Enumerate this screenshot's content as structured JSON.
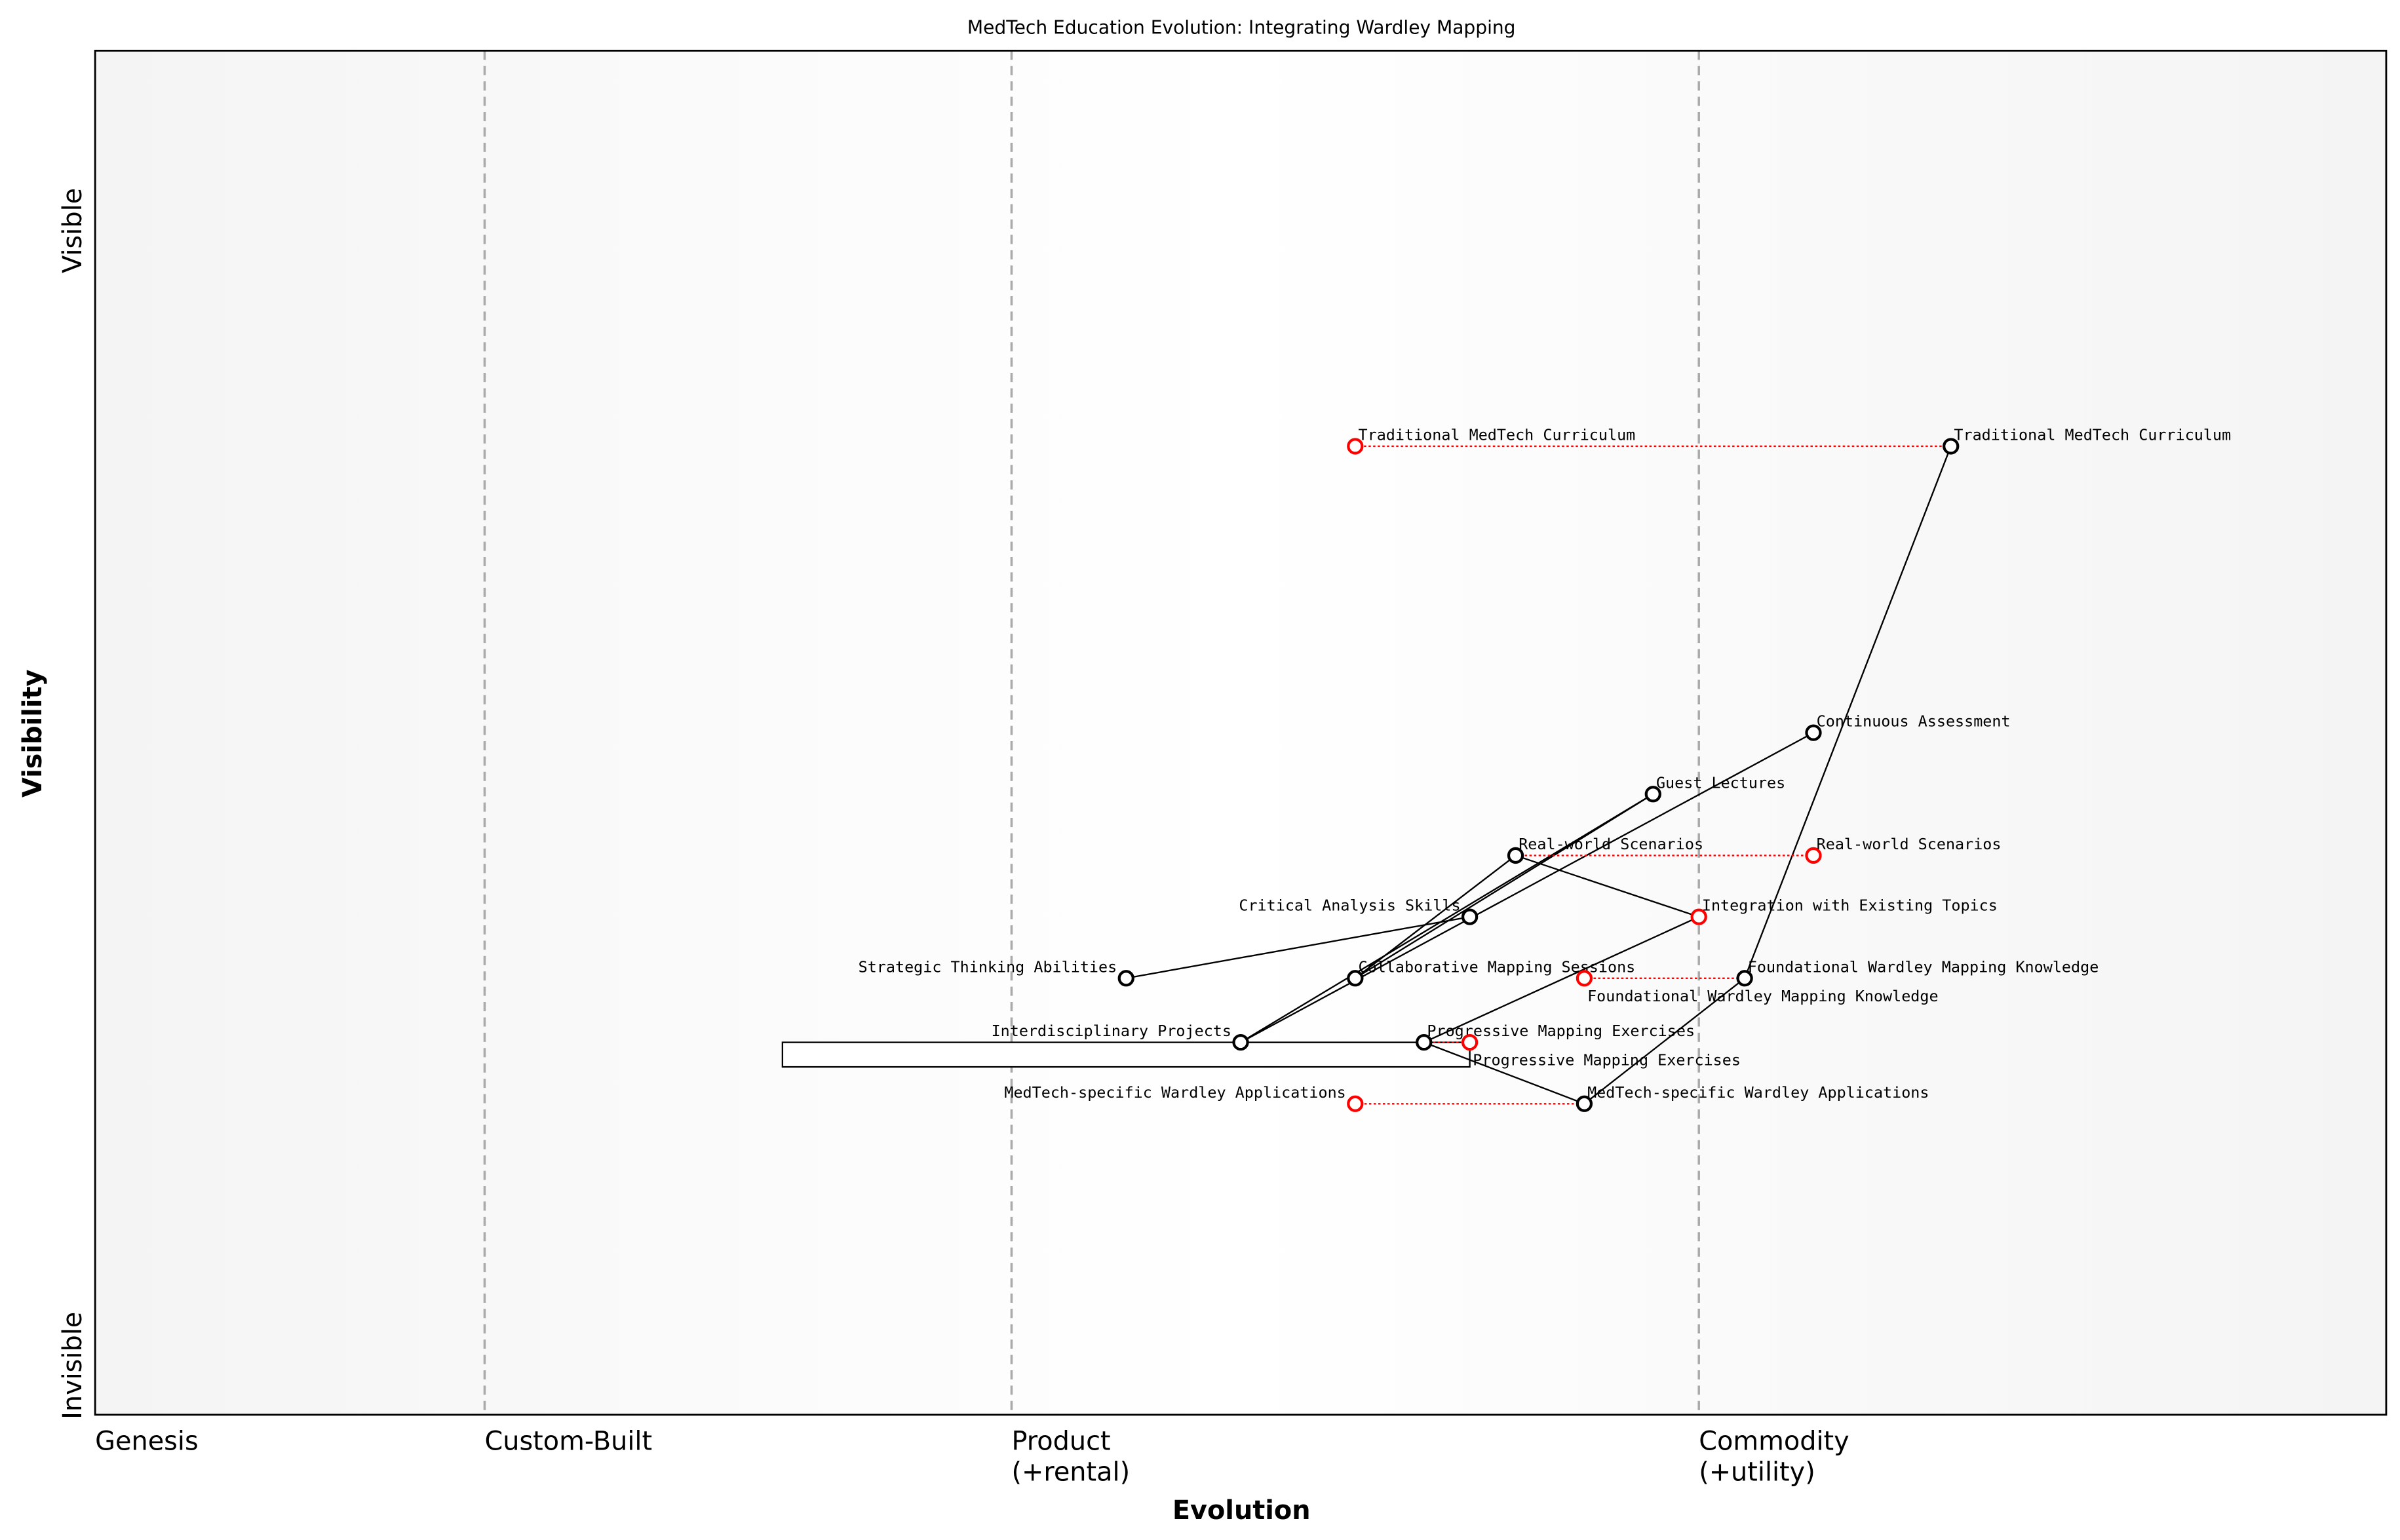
{
  "chart_data": {
    "type": "wardley-map",
    "title": "MedTech Education Evolution: Integrating Wardley Mapping",
    "xlabel": "Evolution",
    "ylabel": "Visibility",
    "y_ticks": [
      "Invisible",
      "Visible"
    ],
    "stages": [
      {
        "label": "Genesis",
        "x": 0.0
      },
      {
        "label": "Custom-Built",
        "x": 0.17
      },
      {
        "label": "Product",
        "sub": "(+rental)",
        "x": 0.4
      },
      {
        "label": "Commodity",
        "sub": "(+utility)",
        "x": 0.7
      }
    ],
    "xlim": [
      0,
      1
    ],
    "ylim": [
      0,
      1
    ],
    "components": [
      {
        "name": "Traditional MedTech Curriculum",
        "evolution": 0.81,
        "visibility": 0.71,
        "color": "#000000"
      },
      {
        "name": "Continuous Assessment",
        "evolution": 0.75,
        "visibility": 0.5,
        "color": "#000000"
      },
      {
        "name": "Guest Lectures",
        "evolution": 0.68,
        "visibility": 0.455,
        "color": "#000000"
      },
      {
        "name": "Real-world Scenarios",
        "evolution": 0.62,
        "visibility": 0.41,
        "color": "#000000"
      },
      {
        "name": "Critical Analysis Skills",
        "evolution": 0.6,
        "visibility": 0.365,
        "color": "#000000"
      },
      {
        "name": "Strategic Thinking Abilities",
        "evolution": 0.45,
        "visibility": 0.32,
        "color": "#000000"
      },
      {
        "name": "Collaborative Mapping Sessions",
        "evolution": 0.55,
        "visibility": 0.32,
        "color": "#000000"
      },
      {
        "name": "Foundational Wardley Mapping Knowledge",
        "evolution": 0.72,
        "visibility": 0.32,
        "color": "#000000"
      },
      {
        "name": "Interdisciplinary Projects",
        "evolution": 0.5,
        "visibility": 0.273,
        "color": "#000000"
      },
      {
        "name": "Progressive Mapping Exercises",
        "evolution": 0.58,
        "visibility": 0.273,
        "color": "#000000"
      },
      {
        "name": "MedTech-specific Wardley Applications",
        "evolution": 0.65,
        "visibility": 0.228,
        "color": "#000000"
      },
      {
        "name": "Traditional MedTech Curriculum",
        "evolution": 0.55,
        "visibility": 0.71,
        "color": "#ff0000"
      },
      {
        "name": "Real-world Scenarios",
        "evolution": 0.75,
        "visibility": 0.41,
        "color": "#ff0000"
      },
      {
        "name": "Integration with Existing Topics",
        "evolution": 0.7,
        "visibility": 0.365,
        "color": "#ff0000"
      },
      {
        "name": "Foundational Wardley Mapping Knowledge",
        "evolution": 0.65,
        "visibility": 0.32,
        "color": "#ff0000"
      },
      {
        "name": "Progressive Mapping Exercises",
        "evolution": 0.6,
        "visibility": 0.273,
        "color": "#ff0000"
      },
      {
        "name": "MedTech-specific Wardley Applications",
        "evolution": 0.55,
        "visibility": 0.228,
        "color": "#ff0000"
      }
    ],
    "links": [
      [
        0,
        7
      ],
      [
        7,
        10
      ],
      [
        1,
        8
      ],
      [
        2,
        6
      ],
      [
        2,
        8
      ],
      [
        3,
        6
      ],
      [
        3,
        13
      ],
      [
        4,
        5
      ],
      [
        13,
        9
      ],
      [
        9,
        10
      ],
      [
        8,
        9
      ]
    ],
    "evolve_links": [
      [
        0,
        11
      ],
      [
        3,
        12
      ],
      [
        14,
        7
      ],
      [
        9,
        15
      ],
      [
        16,
        10
      ]
    ],
    "pipeline": {
      "component": "Progressive Mapping Exercises",
      "evolution_range": [
        0.3,
        0.6
      ],
      "visibility": 0.273
    }
  }
}
